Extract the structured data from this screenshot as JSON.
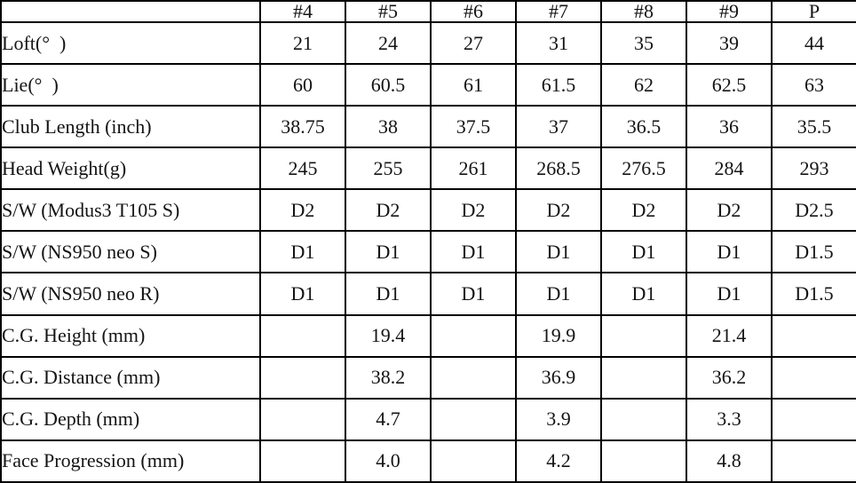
{
  "table": {
    "columns": [
      "",
      "#4",
      "#5",
      "#6",
      "#7",
      "#8",
      "#9",
      "P"
    ],
    "rows": [
      {
        "label": "Loft(°  )",
        "values": [
          "21",
          "24",
          "27",
          "31",
          "35",
          "39",
          "44"
        ]
      },
      {
        "label": "Lie(°  )",
        "values": [
          "60",
          "60.5",
          "61",
          "61.5",
          "62",
          "62.5",
          "63"
        ]
      },
      {
        "label": "Club Length (inch)",
        "values": [
          "38.75",
          "38",
          "37.5",
          "37",
          "36.5",
          "36",
          "35.5"
        ]
      },
      {
        "label": "Head Weight(g)",
        "values": [
          "245",
          "255",
          "261",
          "268.5",
          "276.5",
          "284",
          "293"
        ]
      },
      {
        "label": "S/W (Modus3 T105 S)",
        "values": [
          "D2",
          "D2",
          "D2",
          "D2",
          "D2",
          "D2",
          "D2.5"
        ]
      },
      {
        "label": "S/W (NS950 neo S)",
        "values": [
          "D1",
          "D1",
          "D1",
          "D1",
          "D1",
          "D1",
          "D1.5"
        ]
      },
      {
        "label": "S/W (NS950 neo R)",
        "values": [
          "D1",
          "D1",
          "D1",
          "D1",
          "D1",
          "D1",
          "D1.5"
        ]
      },
      {
        "label": "C.G. Height (mm)",
        "values": [
          "",
          "19.4",
          "",
          "19.9",
          "",
          "21.4",
          ""
        ]
      },
      {
        "label": "C.G. Distance (mm)",
        "values": [
          "",
          "38.2",
          "",
          "36.9",
          "",
          "36.2",
          ""
        ]
      },
      {
        "label": "C.G. Depth (mm)",
        "values": [
          "",
          "4.7",
          "",
          "3.9",
          "",
          "3.3",
          ""
        ]
      },
      {
        "label": "Face Progression (mm)",
        "values": [
          "",
          "4.0",
          "",
          "4.2",
          "",
          "4.8",
          ""
        ]
      }
    ]
  },
  "colors": {
    "border": "#000000",
    "text": "#141414",
    "background": "#ffffff"
  }
}
